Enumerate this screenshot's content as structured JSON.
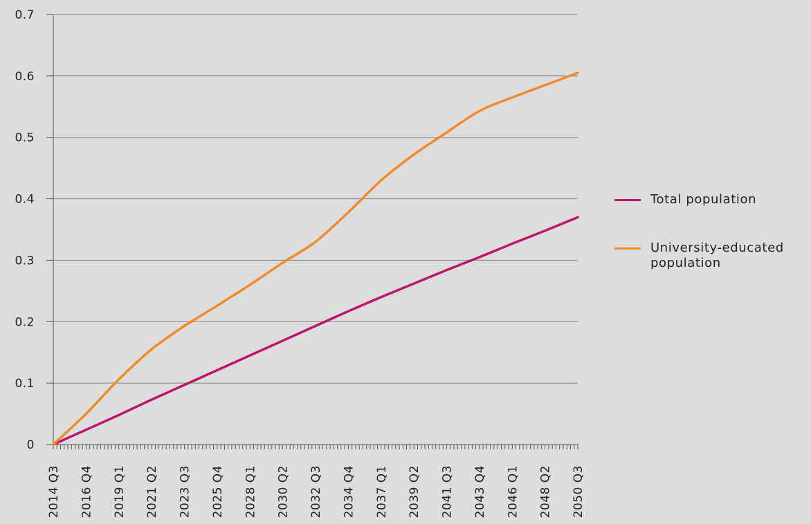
{
  "chart_data": {
    "type": "line",
    "title": "",
    "xlabel": "",
    "ylabel": "",
    "ylim": [
      0,
      0.7
    ],
    "yticks": [
      "0",
      "0.1",
      "0.2",
      "0.3",
      "0.4",
      "0.5",
      "0.6",
      "0.7"
    ],
    "grid": true,
    "legend_position": "right",
    "xticks": [
      "2014 Q3",
      "2016 Q4",
      "2019 Q1",
      "2021 Q2",
      "2023 Q3",
      "2025 Q4",
      "2028 Q1",
      "2030 Q2",
      "2032 Q3",
      "2034 Q4",
      "2037 Q1",
      "2039 Q2",
      "2041 Q3",
      "2043 Q4",
      "2046 Q1",
      "2048 Q2",
      "2050 Q3"
    ],
    "x": [
      "2014 Q3",
      "2016 Q4",
      "2019 Q1",
      "2021 Q2",
      "2023 Q3",
      "2025 Q4",
      "2028 Q1",
      "2030 Q2",
      "2032 Q3",
      "2034 Q4",
      "2037 Q1",
      "2039 Q2",
      "2041 Q3",
      "2043 Q4",
      "2046 Q1",
      "2048 Q2",
      "2050 Q3"
    ],
    "series": [
      {
        "name": "Total population",
        "color": "#c0136b",
        "values": [
          0.0,
          0.024,
          0.048,
          0.073,
          0.097,
          0.121,
          0.145,
          0.169,
          0.193,
          0.217,
          0.24,
          0.262,
          0.284,
          0.305,
          0.327,
          0.348,
          0.37
        ]
      },
      {
        "name": "University-educated population",
        "color": "#f08a2a",
        "values": [
          0.0,
          0.05,
          0.106,
          0.155,
          0.193,
          0.226,
          0.26,
          0.296,
          0.33,
          0.378,
          0.43,
          0.472,
          0.508,
          0.543,
          0.565,
          0.585,
          0.605
        ]
      }
    ]
  },
  "legend": {
    "items": [
      {
        "label": "Total population",
        "color": "#c0136b"
      },
      {
        "label": "University-educated population",
        "color": "#f08a2a"
      }
    ]
  }
}
